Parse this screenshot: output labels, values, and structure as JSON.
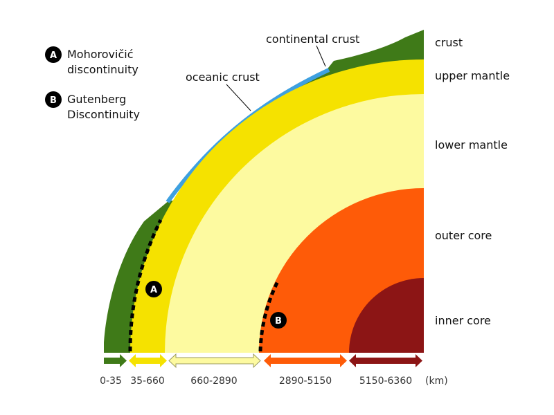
{
  "legend": [
    {
      "letter": "A",
      "lines": [
        "Mohorovičić",
        "discontinuity"
      ]
    },
    {
      "letter": "B",
      "lines": [
        "Gutenberg",
        "Discontinuity"
      ]
    }
  ],
  "callouts": {
    "oceanic": "oceanic crust",
    "continental": "continental crust"
  },
  "layers": [
    {
      "id": "crust",
      "name": "crust",
      "range": "0-35",
      "color": "#3f7a18"
    },
    {
      "id": "upper-mantle",
      "name": "upper mantle",
      "range": "35-660",
      "color": "#f5e200"
    },
    {
      "id": "lower-mantle",
      "name": "lower mantle",
      "range": "660-2890",
      "color": "#fdfaa0"
    },
    {
      "id": "outer-core",
      "name": "outer core",
      "range": "2890-5150",
      "color": "#fe5b08"
    },
    {
      "id": "inner-core",
      "name": "inner core",
      "range": "5150-6360",
      "color": "#8c1515"
    }
  ],
  "oceanic_color": "#3ea0e0",
  "unit": "(km)",
  "markers": {
    "moho": "A",
    "gutenberg": "B"
  }
}
